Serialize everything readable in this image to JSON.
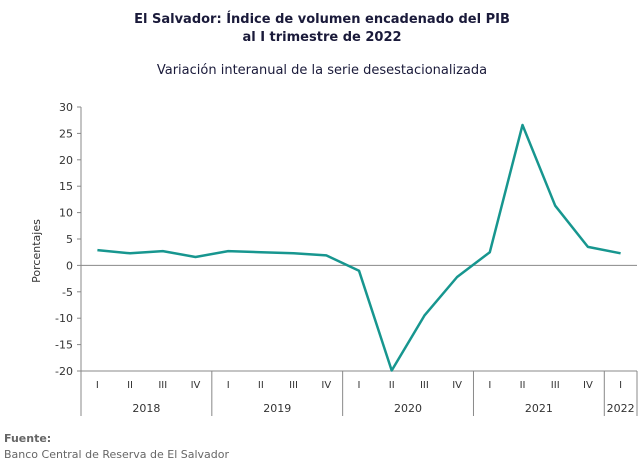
{
  "header": {
    "title_line1": "El Salvador: Índice de volumen encadenado del PIB",
    "title_line2": "al I trimestre de 2022",
    "subtitle": "Variación interanual de la serie desestacionalizada"
  },
  "footer": {
    "label": "Fuente:",
    "source": "Banco Central de Reserva de El Salvador"
  },
  "chart_data": {
    "type": "line",
    "ylabel": "Porcentajes",
    "ylim": [
      -20,
      30
    ],
    "yticks": [
      30,
      25,
      20,
      15,
      10,
      5,
      0,
      -5,
      -10,
      -15,
      -20
    ],
    "quarters": [
      "I",
      "II",
      "III",
      "IV",
      "I",
      "II",
      "III",
      "IV",
      "I",
      "II",
      "III",
      "IV",
      "I",
      "II",
      "III",
      "IV",
      "I"
    ],
    "years": [
      {
        "label": "2018",
        "count": 4
      },
      {
        "label": "2019",
        "count": 4
      },
      {
        "label": "2020",
        "count": 4
      },
      {
        "label": "2021",
        "count": 4
      },
      {
        "label": "2022",
        "count": 1
      }
    ],
    "series": [
      {
        "values": [
          2.9,
          2.3,
          2.7,
          1.6,
          2.7,
          2.5,
          2.3,
          1.9,
          -1.0,
          -19.9,
          -9.5,
          -2.2,
          2.5,
          26.6,
          11.3,
          3.5,
          2.3
        ]
      }
    ],
    "line_color": "#17968f",
    "grid": false
  }
}
